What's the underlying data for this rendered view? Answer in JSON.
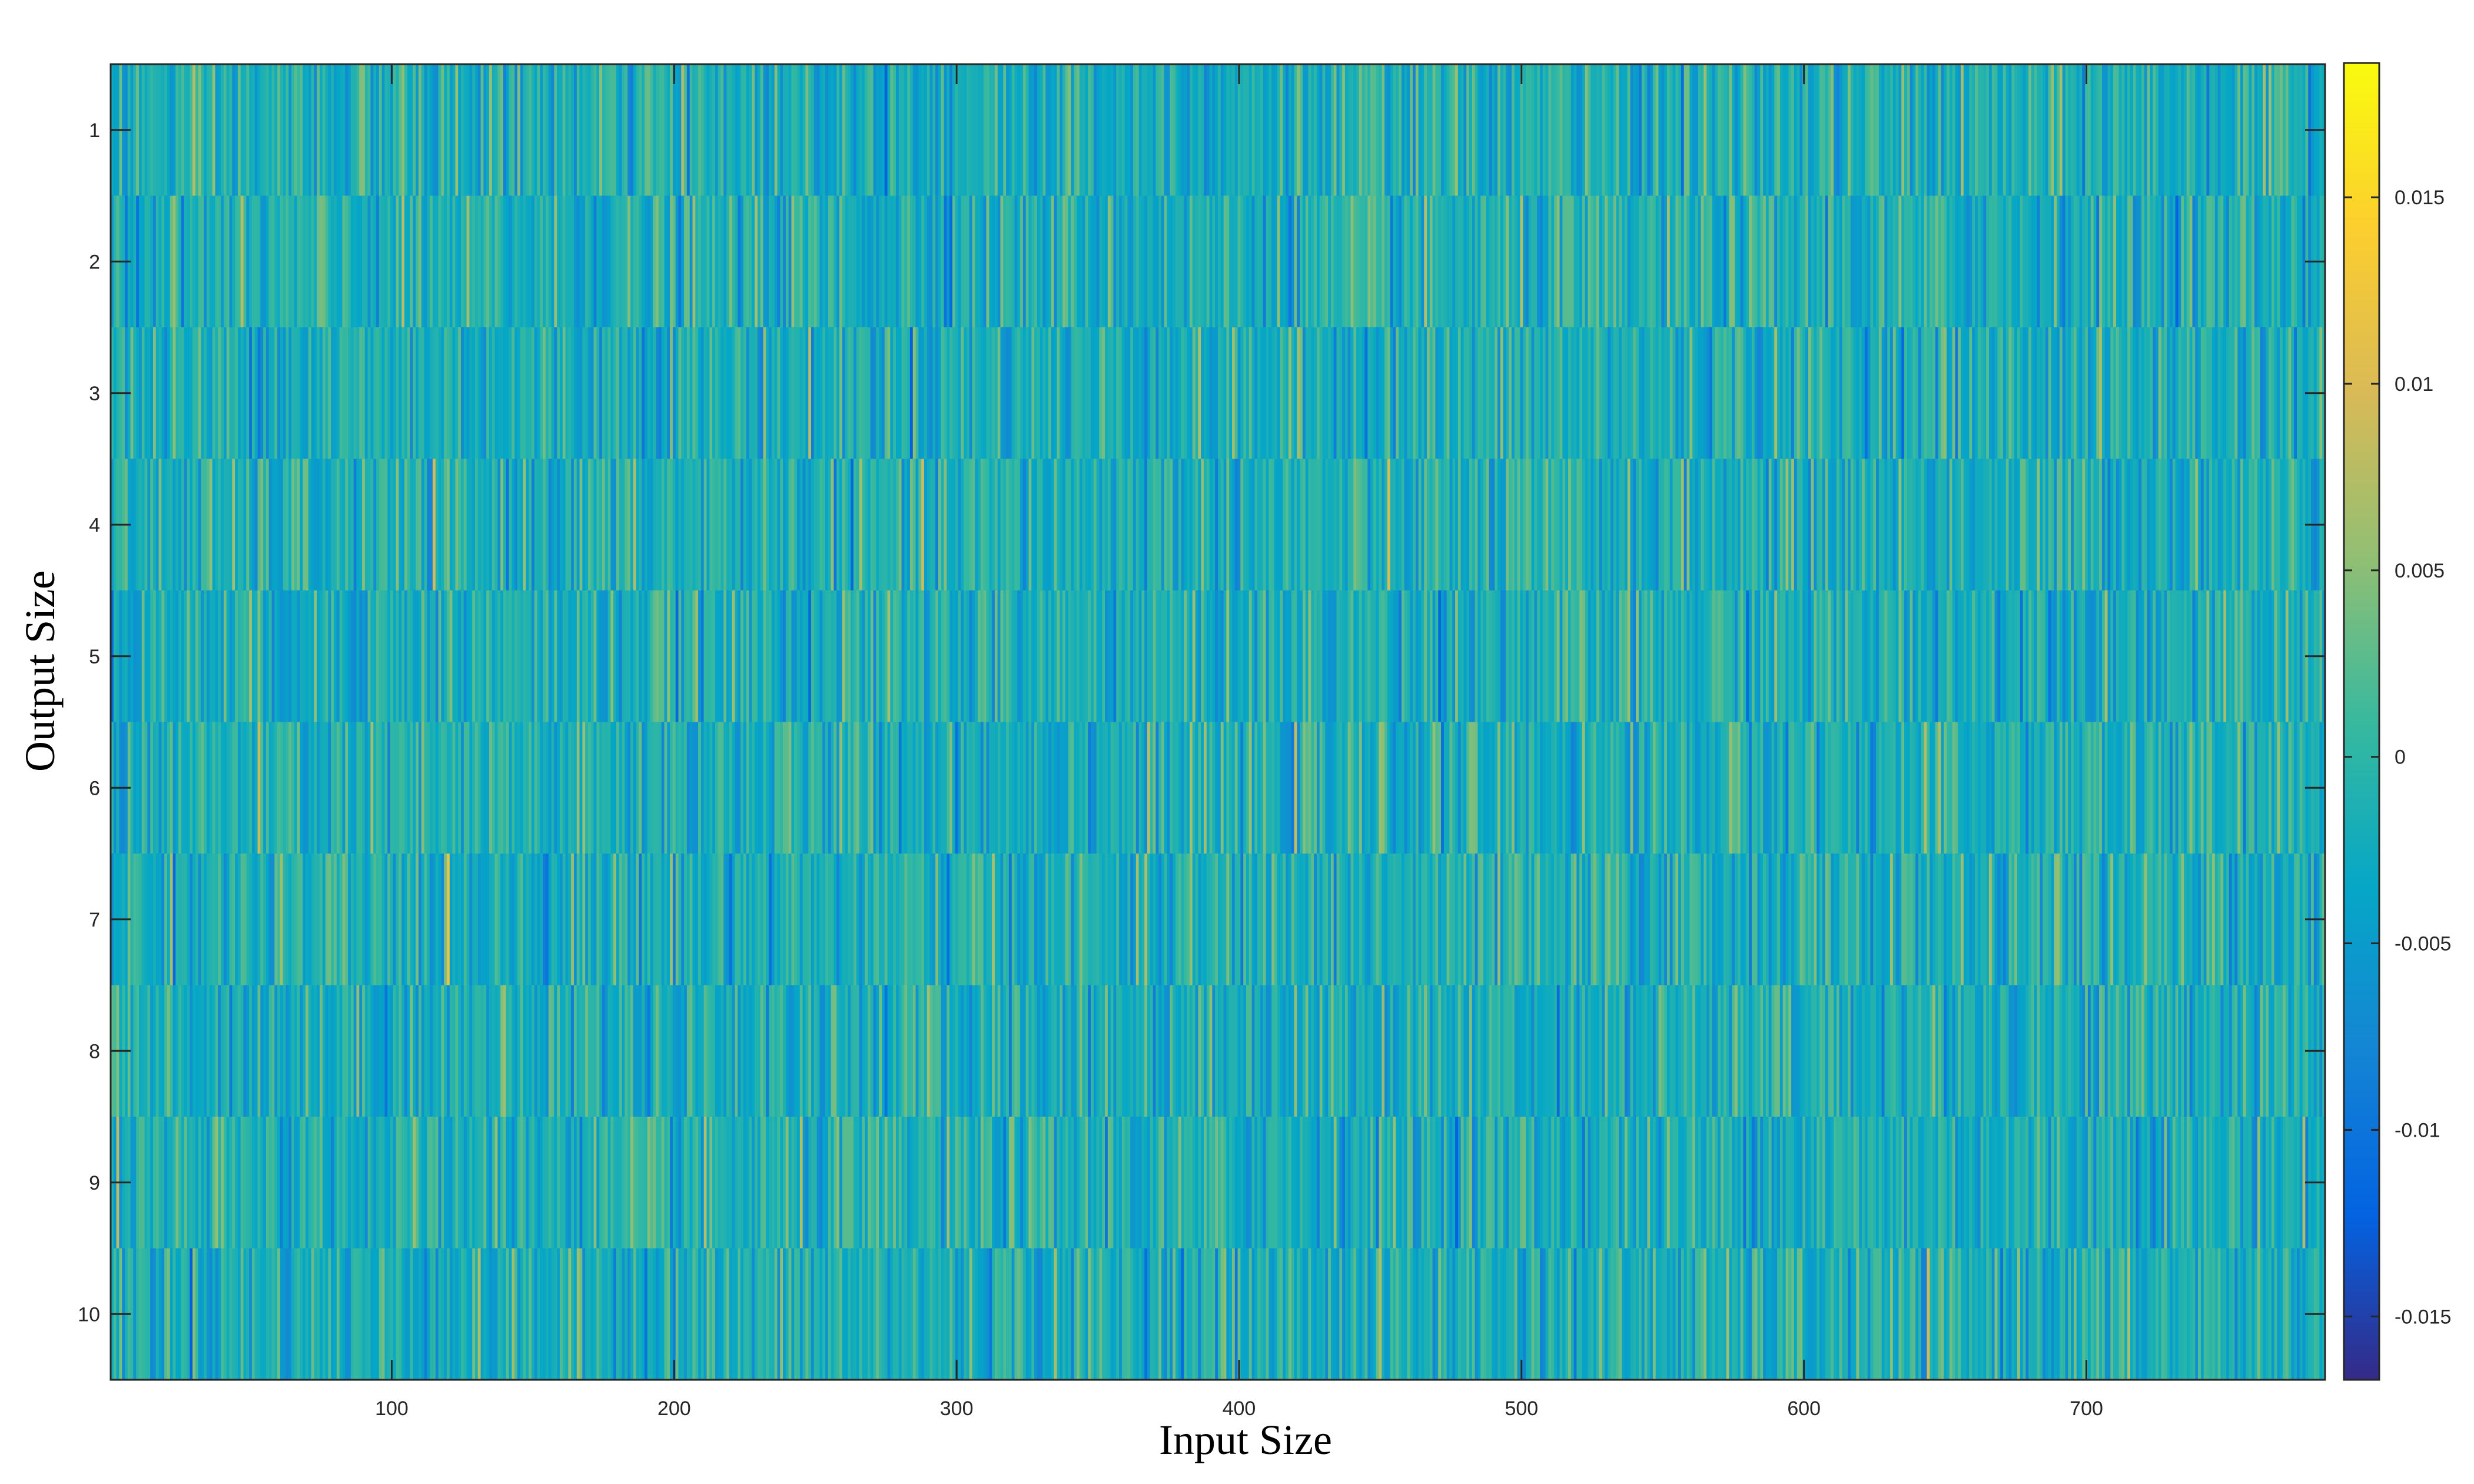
{
  "chart_data": {
    "type": "heatmap",
    "title": "",
    "xlabel": "Input Size",
    "ylabel": "Output Size",
    "xlim": [
      0.5,
      784.5
    ],
    "ylim": [
      0.5,
      10.5
    ],
    "rows": 10,
    "cols": 784,
    "y_reversed": true,
    "grid": false,
    "x_ticks": [
      {
        "value": 100,
        "label": "100"
      },
      {
        "value": 200,
        "label": "200"
      },
      {
        "value": 300,
        "label": "300"
      },
      {
        "value": 400,
        "label": "400"
      },
      {
        "value": 500,
        "label": "500"
      },
      {
        "value": 600,
        "label": "600"
      },
      {
        "value": 700,
        "label": "700"
      }
    ],
    "y_ticks": [
      {
        "value": 1,
        "label": "1"
      },
      {
        "value": 2,
        "label": "2"
      },
      {
        "value": 3,
        "label": "3"
      },
      {
        "value": 4,
        "label": "4"
      },
      {
        "value": 5,
        "label": "5"
      },
      {
        "value": 6,
        "label": "6"
      },
      {
        "value": 7,
        "label": "7"
      },
      {
        "value": 8,
        "label": "8"
      },
      {
        "value": 9,
        "label": "9"
      },
      {
        "value": 10,
        "label": "10"
      }
    ],
    "colorbar": {
      "colormap": "parula",
      "min": -0.0167,
      "max": 0.0186,
      "ticks": [
        {
          "value": 0.015,
          "label": "0.015"
        },
        {
          "value": 0.01,
          "label": "0.01"
        },
        {
          "value": 0.005,
          "label": "0.005"
        },
        {
          "value": 0,
          "label": "0"
        },
        {
          "value": -0.005,
          "label": "-0.005"
        },
        {
          "value": -0.01,
          "label": "-0.01"
        },
        {
          "value": -0.015,
          "label": "-0.015"
        }
      ]
    },
    "value_distribution": {
      "center": -0.0017,
      "spread": 0.0032
    }
  }
}
